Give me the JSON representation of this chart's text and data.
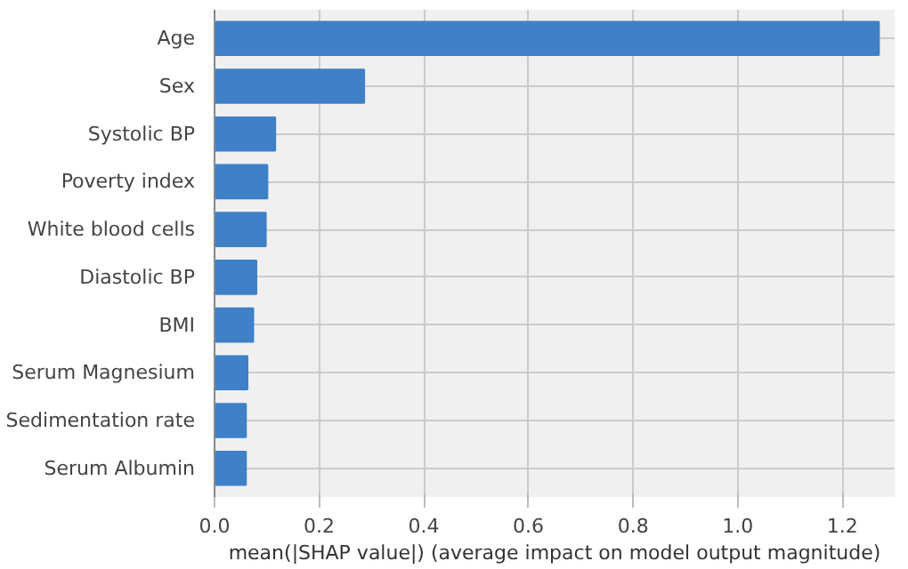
{
  "chart_data": {
    "type": "bar",
    "orientation": "horizontal",
    "categories": [
      "Age",
      "Sex",
      "Systolic BP",
      "Poverty index",
      "White blood cells",
      "Diastolic BP",
      "BMI",
      "Serum Magnesium",
      "Sedimentation rate",
      "Serum Albumin"
    ],
    "values": [
      1.27,
      0.286,
      0.116,
      0.101,
      0.098,
      0.08,
      0.074,
      0.063,
      0.06,
      0.06
    ],
    "color": "#3f80c6",
    "xlabel": "mean(|SHAP value|) (average impact on model output magnitude)",
    "xlim": [
      0,
      1.3
    ],
    "xticks": [
      {
        "value": 0,
        "label": "0.0"
      },
      0.2,
      0.4,
      0.6,
      0.8,
      {
        "value": 1,
        "label": "1.0"
      },
      1.2
    ],
    "grid": true
  }
}
